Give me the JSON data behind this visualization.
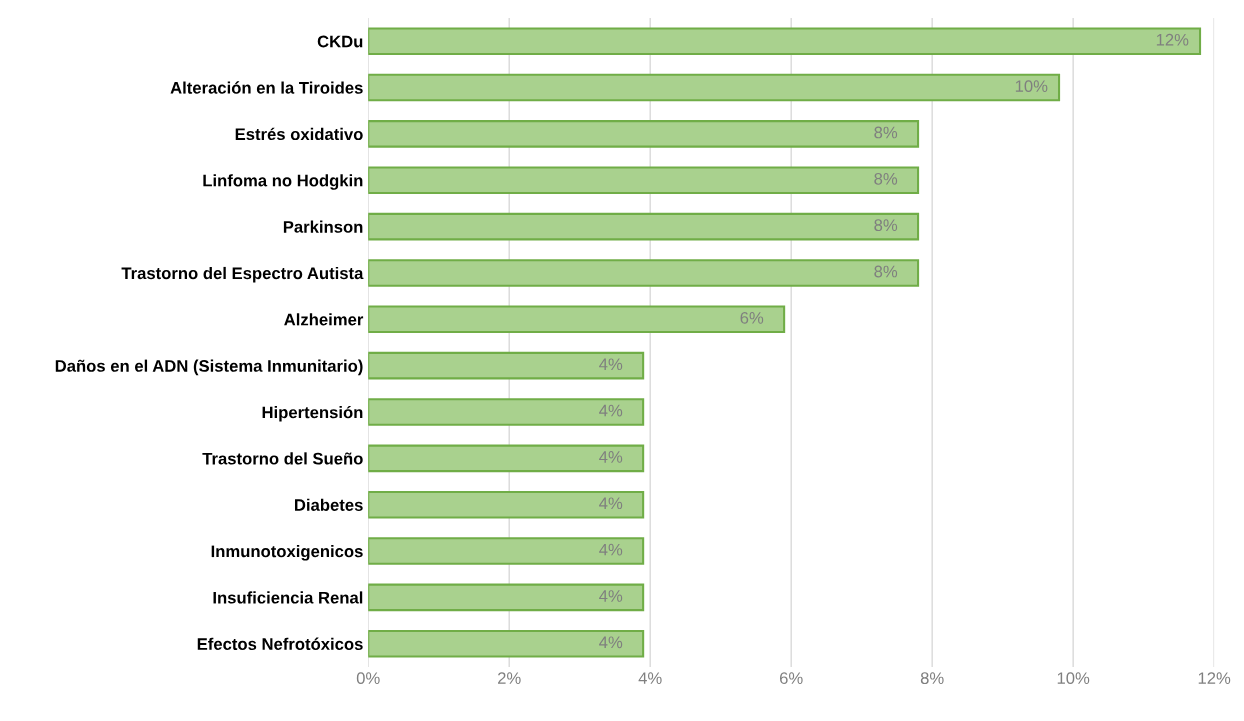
{
  "chart_data": {
    "type": "bar",
    "orientation": "horizontal",
    "categories": [
      "CKDu",
      "Alteración en la Tiroides",
      "Estrés oxidativo",
      "Linfoma no Hodgkin",
      "Parkinson",
      "Trastorno del Espectro Autista",
      "Alzheimer",
      "Daños en el ADN (Sistema Inmunitario)",
      "Hipertensión",
      "Trastorno del Sueño",
      "Diabetes",
      "Inmunotoxigenicos",
      "Insuficiencia Renal",
      "Efectos Nefrotóxicos"
    ],
    "values": [
      11.8,
      9.8,
      7.8,
      7.8,
      7.8,
      7.8,
      5.9,
      3.9,
      3.9,
      3.9,
      3.9,
      3.9,
      3.9,
      3.9
    ],
    "value_labels": [
      "12%",
      "10%",
      "8%",
      "8%",
      "8%",
      "8%",
      "6%",
      "4%",
      "4%",
      "4%",
      "4%",
      "4%",
      "4%",
      "4%"
    ],
    "color": "#a9d18e",
    "xlim": [
      0,
      12
    ],
    "xticks": [
      {
        "value": 0,
        "label": "0%"
      },
      {
        "value": 2,
        "label": "2%"
      },
      {
        "value": 4,
        "label": "4%"
      },
      {
        "value": 6,
        "label": "6%"
      },
      {
        "value": 8,
        "label": "8%"
      },
      {
        "value": 10,
        "label": "10%"
      },
      {
        "value": 12,
        "label": "12%"
      }
    ],
    "grid": "x",
    "legend": false
  }
}
